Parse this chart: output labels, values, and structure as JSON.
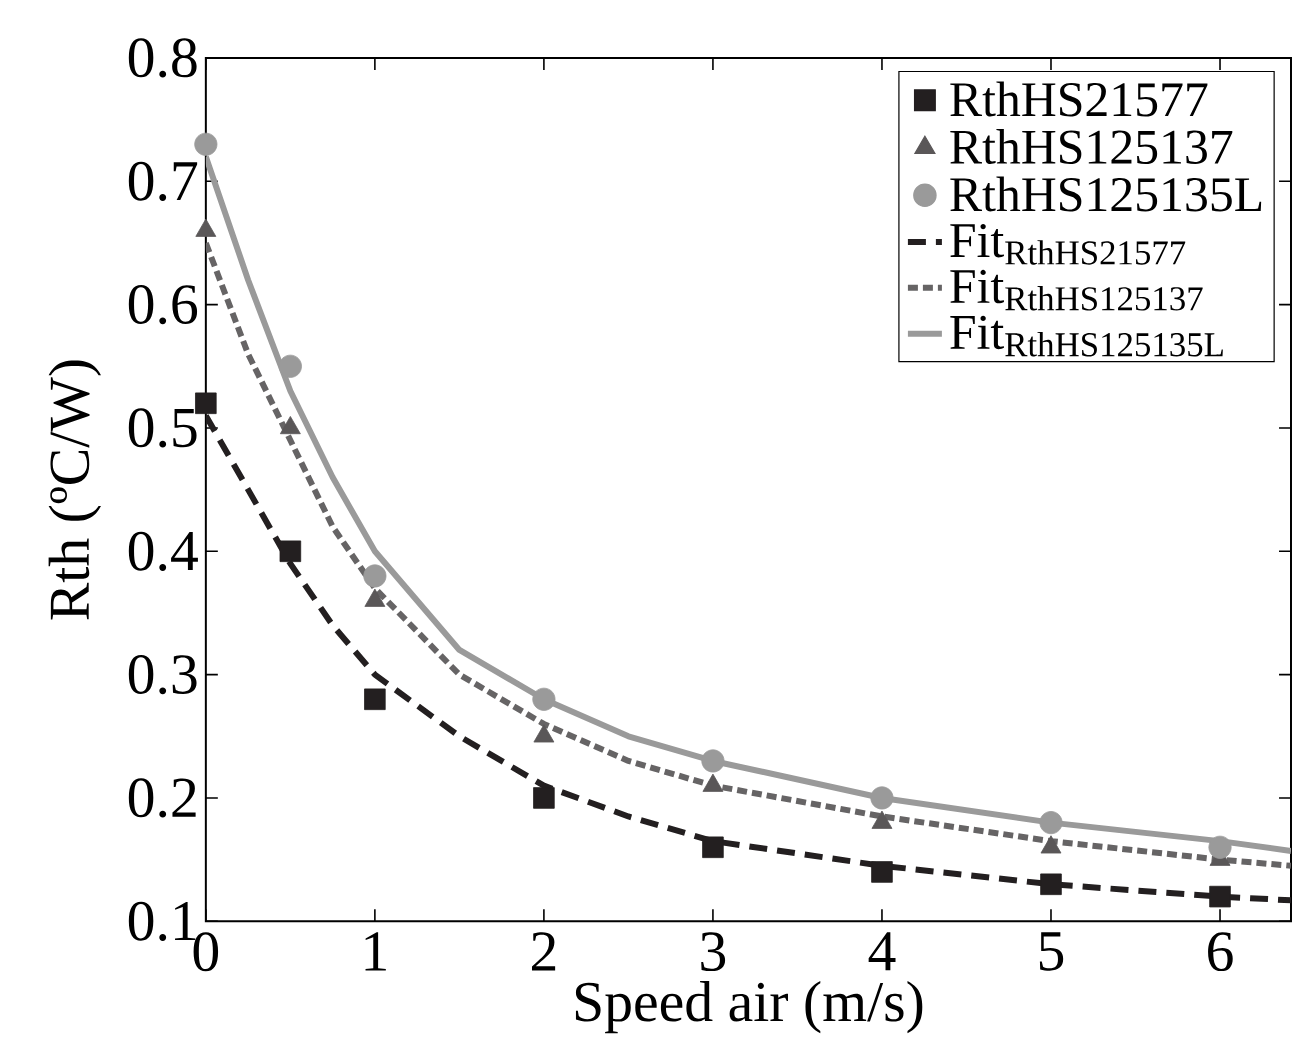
{
  "chart_data": {
    "type": "scatter",
    "xlabel": "Speed air (m/s)",
    "ylabel": "Rth (ºC/W)",
    "xlim": [
      0,
      6.42
    ],
    "ylim": [
      0.1,
      0.8
    ],
    "xticks": [
      0,
      1,
      2,
      3,
      4,
      5,
      6
    ],
    "yticks": [
      0.1,
      0.2,
      0.3,
      0.4,
      0.5,
      0.6,
      0.7,
      0.8
    ],
    "legend": "top right",
    "grid": false,
    "series": [
      {
        "name": "RthHS21577",
        "type": "scatter",
        "marker": "square",
        "color": "#231f20",
        "x": [
          0,
          0.5,
          1,
          2,
          3,
          4,
          5,
          6
        ],
        "values": [
          0.52,
          0.4,
          0.28,
          0.2,
          0.16,
          0.14,
          0.13,
          0.12
        ]
      },
      {
        "name": "RthHS125137",
        "type": "scatter",
        "marker": "triangle",
        "color": "#5a5758",
        "x": [
          0,
          0.5,
          1,
          2,
          3,
          4,
          5,
          6
        ],
        "values": [
          0.66,
          0.5,
          0.36,
          0.25,
          0.21,
          0.18,
          0.16,
          0.15
        ]
      },
      {
        "name": "RthHS125135L",
        "type": "scatter",
        "marker": "circle",
        "color": "#9a9a9a",
        "x": [
          0,
          0.5,
          1,
          2,
          3,
          4,
          5,
          6
        ],
        "values": [
          0.73,
          0.55,
          0.38,
          0.28,
          0.23,
          0.2,
          0.18,
          0.16
        ]
      },
      {
        "name": "\\mathrm{Fit}_{\\mathrm{RthHS21577}}",
        "type": "line",
        "line_style": "dashed",
        "color": "#231f20",
        "x": [
          0,
          0.25,
          0.5,
          0.75,
          1,
          1.5,
          2,
          2.5,
          3,
          4,
          5,
          6,
          6.42
        ],
        "values": [
          0.51,
          0.45,
          0.39,
          0.34,
          0.3,
          0.25,
          0.21,
          0.185,
          0.165,
          0.145,
          0.13,
          0.12,
          0.117
        ]
      },
      {
        "name": "\\mathrm{Fit}_{\\mathrm{RthHS125137}}",
        "type": "line",
        "line_style": "dotted",
        "color": "#666465",
        "x": [
          0,
          0.25,
          0.5,
          0.75,
          1,
          1.5,
          2,
          2.5,
          3,
          4,
          5,
          6,
          6.42
        ],
        "values": [
          0.65,
          0.56,
          0.49,
          0.42,
          0.37,
          0.3,
          0.26,
          0.23,
          0.21,
          0.185,
          0.165,
          0.15,
          0.145
        ]
      },
      {
        "name": "\\mathrm{Fit}_{\\mathrm{RthHS125135L}}",
        "type": "line",
        "line_style": "solid",
        "color": "#9a9a9a",
        "x": [
          0,
          0.25,
          0.5,
          0.75,
          1,
          1.5,
          2,
          2.5,
          3,
          4,
          5,
          6,
          6.42
        ],
        "values": [
          0.72,
          0.62,
          0.53,
          0.46,
          0.4,
          0.32,
          0.28,
          0.25,
          0.23,
          0.2,
          0.18,
          0.165,
          0.157
        ]
      }
    ]
  }
}
